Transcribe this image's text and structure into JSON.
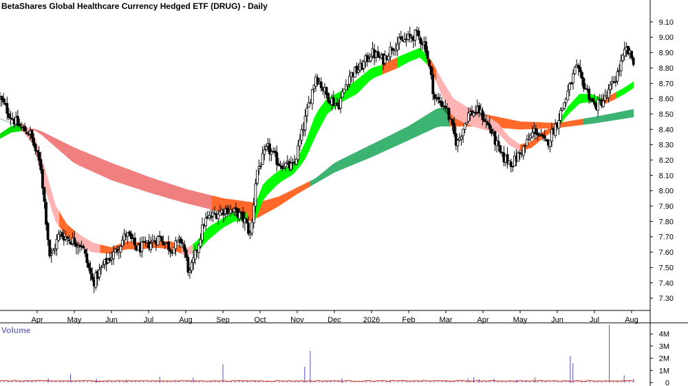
{
  "chart_data": {
    "type": "candlestick",
    "title": "BetaShares Global Healthcare Currency Hedged ETF (DRUG) - Daily",
    "price_axis": {
      "ylim": [
        7.22,
        9.18
      ],
      "ticks": [
        "9.10",
        "9.00",
        "8.90",
        "8.80",
        "8.70",
        "8.60",
        "8.50",
        "8.40",
        "8.30",
        "8.20",
        "8.10",
        "8.00",
        "7.90",
        "7.80",
        "7.70",
        "7.60",
        "7.50",
        "7.40",
        "7.30"
      ]
    },
    "x_axis": {
      "labels": [
        "Apr",
        "May",
        "Jun",
        "Jul",
        "Aug",
        "Sep",
        "Oct",
        "Nov",
        "Dec",
        "2026",
        "Feb",
        "Mar",
        "Apr",
        "May",
        "Jun",
        "Jul",
        "Aug"
      ],
      "months_from_start": [
        1,
        2,
        3,
        4,
        5,
        6,
        7,
        8,
        9,
        10,
        11,
        12,
        13,
        14,
        15,
        16,
        17
      ],
      "span_months": 17.5
    },
    "price_anchors": [
      [
        0.0,
        8.6
      ],
      [
        0.3,
        8.48
      ],
      [
        0.6,
        8.4
      ],
      [
        0.8,
        8.38
      ],
      [
        1.1,
        8.15
      ],
      [
        1.35,
        7.55
      ],
      [
        1.6,
        7.72
      ],
      [
        1.9,
        7.68
      ],
      [
        2.2,
        7.65
      ],
      [
        2.5,
        7.4
      ],
      [
        2.8,
        7.52
      ],
      [
        3.1,
        7.6
      ],
      [
        3.4,
        7.72
      ],
      [
        3.7,
        7.62
      ],
      [
        4.0,
        7.65
      ],
      [
        4.3,
        7.7
      ],
      [
        4.6,
        7.62
      ],
      [
        4.9,
        7.68
      ],
      [
        5.1,
        7.45
      ],
      [
        5.3,
        7.62
      ],
      [
        5.5,
        7.8
      ],
      [
        5.8,
        7.85
      ],
      [
        6.1,
        7.88
      ],
      [
        6.4,
        7.85
      ],
      [
        6.6,
        7.8
      ],
      [
        6.75,
        7.7
      ],
      [
        6.9,
        8.12
      ],
      [
        7.2,
        8.28
      ],
      [
        7.5,
        8.18
      ],
      [
        7.9,
        8.15
      ],
      [
        8.2,
        8.45
      ],
      [
        8.5,
        8.75
      ],
      [
        8.8,
        8.62
      ],
      [
        9.1,
        8.55
      ],
      [
        9.4,
        8.75
      ],
      [
        9.7,
        8.8
      ],
      [
        10.0,
        8.9
      ],
      [
        10.3,
        8.85
      ],
      [
        10.6,
        8.95
      ],
      [
        10.9,
        8.98
      ],
      [
        11.2,
        9.02
      ],
      [
        11.45,
        8.95
      ],
      [
        11.7,
        8.6
      ],
      [
        12.0,
        8.55
      ],
      [
        12.3,
        8.3
      ],
      [
        12.6,
        8.5
      ],
      [
        12.9,
        8.52
      ],
      [
        13.2,
        8.4
      ],
      [
        13.5,
        8.22
      ],
      [
        13.8,
        8.18
      ],
      [
        14.1,
        8.28
      ],
      [
        14.4,
        8.4
      ],
      [
        14.7,
        8.3
      ],
      [
        15.0,
        8.45
      ],
      [
        15.3,
        8.65
      ],
      [
        15.5,
        8.8
      ],
      [
        15.7,
        8.7
      ],
      [
        16.0,
        8.55
      ],
      [
        16.3,
        8.6
      ],
      [
        16.6,
        8.75
      ],
      [
        16.85,
        8.92
      ],
      [
        17.05,
        8.85
      ]
    ],
    "long_band_top": [
      [
        0.0,
        8.47
      ],
      [
        0.6,
        8.41
      ],
      [
        1.0,
        8.4
      ],
      [
        2.0,
        8.28
      ],
      [
        3.0,
        8.18
      ],
      [
        4.0,
        8.09
      ],
      [
        5.0,
        8.01
      ],
      [
        6.0,
        7.95
      ],
      [
        6.9,
        7.92
      ],
      [
        7.5,
        7.96
      ],
      [
        8.0,
        8.02
      ],
      [
        8.5,
        8.08
      ],
      [
        9.0,
        8.18
      ],
      [
        10.0,
        8.3
      ],
      [
        11.0,
        8.42
      ],
      [
        11.8,
        8.54
      ],
      [
        12.3,
        8.53
      ],
      [
        13.0,
        8.5
      ],
      [
        14.0,
        8.45
      ],
      [
        15.0,
        8.44
      ],
      [
        16.0,
        8.48
      ],
      [
        17.05,
        8.53
      ]
    ],
    "long_band_bottom": [
      [
        0.0,
        8.47
      ],
      [
        0.6,
        8.41
      ],
      [
        1.0,
        8.39
      ],
      [
        2.0,
        8.18
      ],
      [
        3.0,
        8.07
      ],
      [
        4.0,
        7.99
      ],
      [
        5.0,
        7.92
      ],
      [
        6.0,
        7.86
      ],
      [
        6.9,
        7.82
      ],
      [
        7.5,
        7.9
      ],
      [
        8.0,
        7.98
      ],
      [
        8.5,
        8.05
      ],
      [
        9.0,
        8.12
      ],
      [
        10.0,
        8.22
      ],
      [
        11.0,
        8.33
      ],
      [
        11.8,
        8.42
      ],
      [
        12.3,
        8.42
      ],
      [
        13.0,
        8.42
      ],
      [
        14.0,
        8.4
      ],
      [
        15.0,
        8.41
      ],
      [
        16.0,
        8.44
      ],
      [
        17.05,
        8.48
      ]
    ],
    "long_band_colors": [
      {
        "from": 0.0,
        "to": 0.6,
        "color": "#2e8b57"
      },
      {
        "from": 0.6,
        "to": 5.7,
        "color": "#f08080"
      },
      {
        "from": 5.7,
        "to": 8.35,
        "color": "#ff6a2a"
      },
      {
        "from": 8.35,
        "to": 12.1,
        "color": "#3cb371"
      },
      {
        "from": 12.1,
        "to": 15.7,
        "color": "#ff6a2a"
      },
      {
        "from": 15.7,
        "to": 17.05,
        "color": "#3cb371"
      }
    ],
    "short_band_top": [
      [
        0.0,
        8.37
      ],
      [
        0.3,
        8.42
      ],
      [
        0.6,
        8.44
      ],
      [
        0.9,
        8.38
      ],
      [
        1.2,
        8.15
      ],
      [
        1.5,
        7.9
      ],
      [
        1.8,
        7.78
      ],
      [
        2.1,
        7.72
      ],
      [
        2.5,
        7.66
      ],
      [
        3.0,
        7.63
      ],
      [
        3.4,
        7.67
      ],
      [
        3.8,
        7.66
      ],
      [
        4.2,
        7.67
      ],
      [
        4.6,
        7.67
      ],
      [
        5.0,
        7.62
      ],
      [
        5.3,
        7.67
      ],
      [
        5.6,
        7.76
      ],
      [
        6.0,
        7.82
      ],
      [
        6.3,
        7.86
      ],
      [
        6.6,
        7.85
      ],
      [
        6.85,
        7.9
      ],
      [
        7.1,
        8.05
      ],
      [
        7.5,
        8.13
      ],
      [
        7.9,
        8.17
      ],
      [
        8.2,
        8.3
      ],
      [
        8.5,
        8.5
      ],
      [
        8.8,
        8.6
      ],
      [
        9.2,
        8.65
      ],
      [
        9.6,
        8.72
      ],
      [
        10.0,
        8.8
      ],
      [
        10.3,
        8.82
      ],
      [
        10.7,
        8.87
      ],
      [
        11.0,
        8.9
      ],
      [
        11.3,
        8.93
      ],
      [
        11.6,
        8.85
      ],
      [
        11.9,
        8.72
      ],
      [
        12.2,
        8.6
      ],
      [
        12.6,
        8.54
      ],
      [
        13.0,
        8.5
      ],
      [
        13.4,
        8.44
      ],
      [
        13.7,
        8.35
      ],
      [
        14.0,
        8.3
      ],
      [
        14.3,
        8.32
      ],
      [
        14.6,
        8.38
      ],
      [
        15.0,
        8.44
      ],
      [
        15.3,
        8.55
      ],
      [
        15.6,
        8.63
      ],
      [
        15.9,
        8.63
      ],
      [
        16.2,
        8.6
      ],
      [
        16.5,
        8.63
      ],
      [
        16.8,
        8.67
      ],
      [
        17.05,
        8.71
      ]
    ],
    "short_band_bottom": [
      [
        0.0,
        8.34
      ],
      [
        0.3,
        8.38
      ],
      [
        0.6,
        8.39
      ],
      [
        0.9,
        8.3
      ],
      [
        1.2,
        8.02
      ],
      [
        1.5,
        7.8
      ],
      [
        1.8,
        7.7
      ],
      [
        2.1,
        7.64
      ],
      [
        2.5,
        7.6
      ],
      [
        3.0,
        7.59
      ],
      [
        3.4,
        7.62
      ],
      [
        3.8,
        7.62
      ],
      [
        4.2,
        7.63
      ],
      [
        4.6,
        7.62
      ],
      [
        5.0,
        7.58
      ],
      [
        5.3,
        7.6
      ],
      [
        5.6,
        7.68
      ],
      [
        6.0,
        7.76
      ],
      [
        6.3,
        7.8
      ],
      [
        6.6,
        7.81
      ],
      [
        6.85,
        7.8
      ],
      [
        7.1,
        7.95
      ],
      [
        7.5,
        8.05
      ],
      [
        7.9,
        8.11
      ],
      [
        8.2,
        8.2
      ],
      [
        8.5,
        8.36
      ],
      [
        8.8,
        8.5
      ],
      [
        9.2,
        8.58
      ],
      [
        9.6,
        8.63
      ],
      [
        10.0,
        8.73
      ],
      [
        10.3,
        8.76
      ],
      [
        10.7,
        8.8
      ],
      [
        11.0,
        8.84
      ],
      [
        11.3,
        8.87
      ],
      [
        11.6,
        8.8
      ],
      [
        11.9,
        8.62
      ],
      [
        12.2,
        8.48
      ],
      [
        12.6,
        8.43
      ],
      [
        13.0,
        8.4
      ],
      [
        13.4,
        8.38
      ],
      [
        13.7,
        8.3
      ],
      [
        14.0,
        8.26
      ],
      [
        14.3,
        8.28
      ],
      [
        14.6,
        8.34
      ],
      [
        15.0,
        8.41
      ],
      [
        15.3,
        8.5
      ],
      [
        15.6,
        8.57
      ],
      [
        15.9,
        8.58
      ],
      [
        16.2,
        8.56
      ],
      [
        16.5,
        8.59
      ],
      [
        16.8,
        8.63
      ],
      [
        17.05,
        8.67
      ]
    ],
    "short_band_colors": [
      {
        "from": 0.0,
        "to": 0.6,
        "color": "#00e000"
      },
      {
        "from": 0.6,
        "to": 1.6,
        "color": "#ffb3b3"
      },
      {
        "from": 1.6,
        "to": 2.0,
        "color": "#ff6a2a"
      },
      {
        "from": 2.0,
        "to": 2.7,
        "color": "#ffb3b3"
      },
      {
        "from": 2.7,
        "to": 4.9,
        "color": "#ff6a2a"
      },
      {
        "from": 4.9,
        "to": 5.2,
        "color": "#ffb3b3"
      },
      {
        "from": 5.2,
        "to": 6.65,
        "color": "#00ff00"
      },
      {
        "from": 6.65,
        "to": 6.85,
        "color": "#ff6a2a"
      },
      {
        "from": 6.85,
        "to": 10.3,
        "color": "#00ff00"
      },
      {
        "from": 10.3,
        "to": 10.7,
        "color": "#ff6a2a"
      },
      {
        "from": 10.7,
        "to": 11.5,
        "color": "#00ff00"
      },
      {
        "from": 11.5,
        "to": 11.75,
        "color": "#ff6a2a"
      },
      {
        "from": 11.75,
        "to": 14.0,
        "color": "#ffb3b3"
      },
      {
        "from": 14.0,
        "to": 15.1,
        "color": "#ff6a2a"
      },
      {
        "from": 15.1,
        "to": 16.2,
        "color": "#00ff00"
      },
      {
        "from": 16.2,
        "to": 16.6,
        "color": "#ff6a2a"
      },
      {
        "from": 16.6,
        "to": 17.05,
        "color": "#00ff00"
      }
    ],
    "volume": {
      "label": "Volume",
      "ticks": [
        "4M",
        "3M",
        "2M",
        "1M",
        "0"
      ],
      "tick_values": [
        4000000,
        3000000,
        2000000,
        1000000,
        0
      ],
      "ymax": 4800000,
      "spikes": [
        [
          1.3,
          350000
        ],
        [
          1.9,
          700000
        ],
        [
          2.6,
          300000
        ],
        [
          3.4,
          260000
        ],
        [
          4.3,
          480000
        ],
        [
          5.2,
          420000
        ],
        [
          6.0,
          1500000
        ],
        [
          8.2,
          1300000
        ],
        [
          8.35,
          2600000
        ],
        [
          9.2,
          350000
        ],
        [
          10.5,
          150000
        ],
        [
          12.6,
          350000
        ],
        [
          12.75,
          450000
        ],
        [
          12.9,
          280000
        ],
        [
          13.3,
          300000
        ],
        [
          13.9,
          220000
        ],
        [
          14.4,
          420000
        ],
        [
          15.35,
          2200000
        ],
        [
          15.42,
          1600000
        ],
        [
          16.4,
          4750000
        ],
        [
          16.8,
          600000
        ],
        [
          17.05,
          300000
        ]
      ],
      "baseline": 130000,
      "line_color": "#c83232",
      "spike_color": "#6c6cc8"
    }
  }
}
